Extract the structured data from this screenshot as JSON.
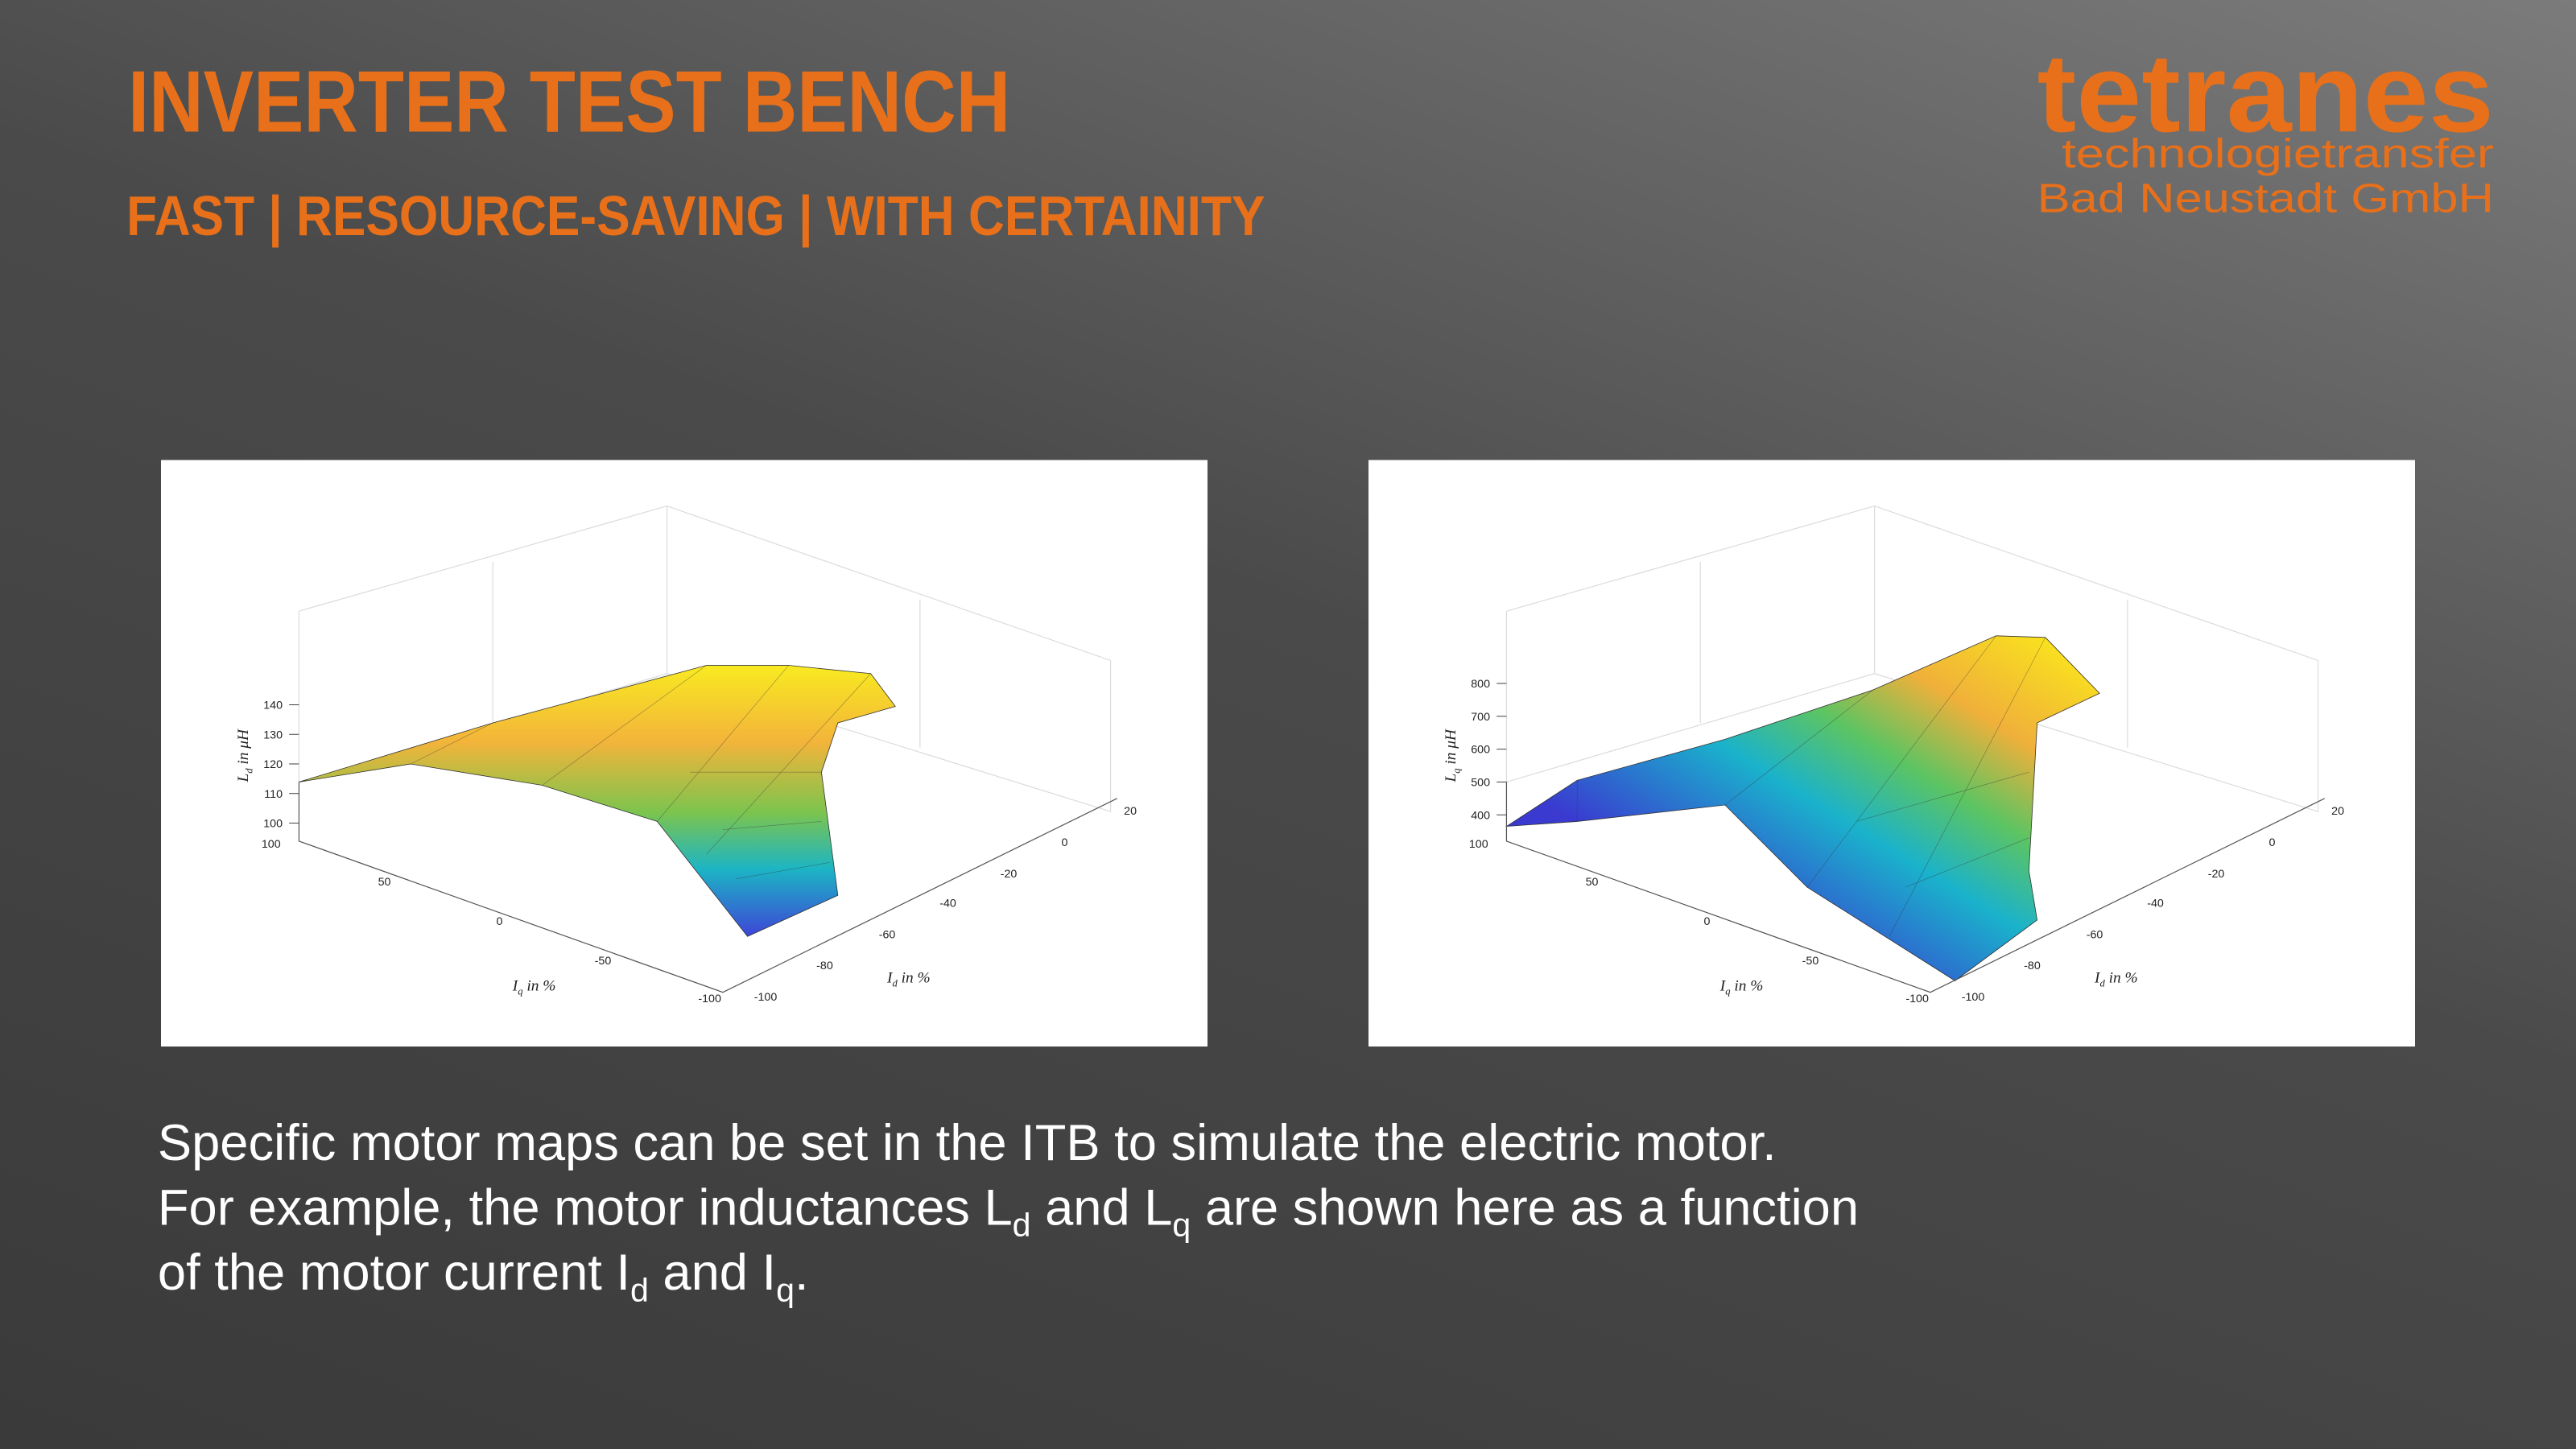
{
  "header": {
    "title": "INVERTER TEST BENCH",
    "subtitle": "FAST | RESOURCE-SAVING | WITH CERTAINITY"
  },
  "logo": {
    "name": "tetranes",
    "line1": "technologietransfer",
    "line2": "Bad Neustadt GmbH"
  },
  "plots": [
    {
      "z_label": [
        "L",
        "d",
        " in μH"
      ],
      "x_label": [
        "I",
        "q",
        " in %"
      ],
      "y_label": [
        "I",
        "d",
        " in %"
      ],
      "z_ticks": [
        100,
        110,
        120,
        130,
        140
      ],
      "iq_ticks": [
        100,
        50,
        0,
        -50,
        -100
      ],
      "id_ticks": [
        -100,
        -80,
        -60,
        -40,
        -20,
        0,
        20
      ]
    },
    {
      "z_label": [
        "L",
        "q",
        " in μH"
      ],
      "x_label": [
        "I",
        "q",
        " in %"
      ],
      "y_label": [
        "I",
        "d",
        " in %"
      ],
      "z_ticks": [
        400,
        500,
        600,
        700,
        800
      ],
      "iq_ticks": [
        100,
        50,
        0,
        -50,
        -100
      ],
      "id_ticks": [
        -100,
        -80,
        -60,
        -40,
        -20,
        0,
        20
      ]
    }
  ],
  "body": {
    "lines": [
      [
        "Specific motor maps can be set in the ITB to simulate the electric motor."
      ],
      [
        "For example, the motor inductances L",
        "d",
        " and L",
        "q",
        " are shown here as a function"
      ],
      [
        "of the motor current I",
        "d",
        " and I",
        "q",
        "."
      ]
    ]
  }
}
